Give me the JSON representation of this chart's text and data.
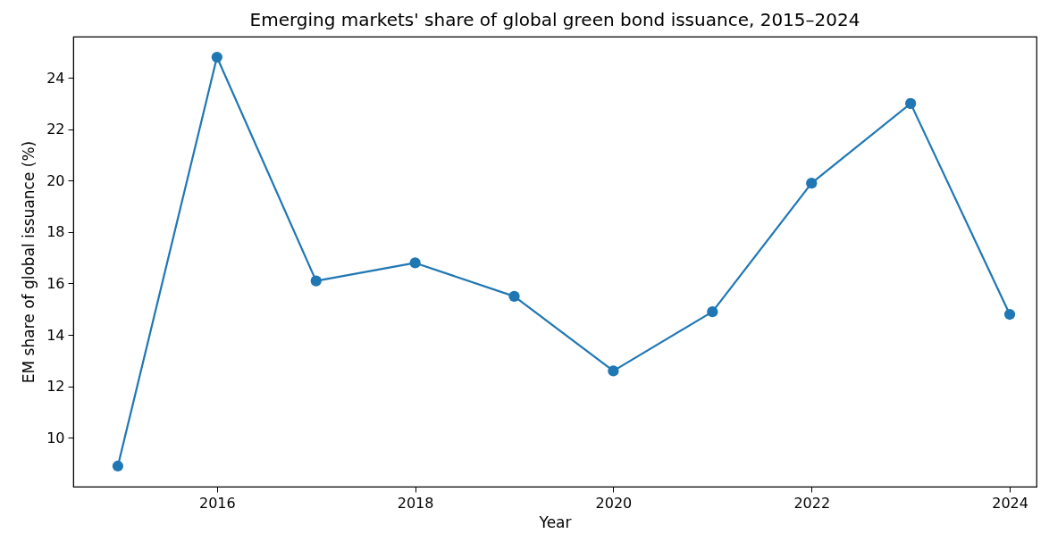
{
  "chart_data": {
    "type": "line",
    "title": "Emerging markets' share of global green bond issuance, 2015–2024",
    "xlabel": "Year",
    "ylabel": "EM share of global issuance (%)",
    "x": [
      2015,
      2016,
      2017,
      2018,
      2019,
      2020,
      2021,
      2022,
      2023,
      2024
    ],
    "series": [
      {
        "color": "#1f77b4",
        "values": [
          8.9,
          24.8,
          16.1,
          16.8,
          15.5,
          12.6,
          14.9,
          19.9,
          23.0,
          14.8
        ]
      }
    ],
    "xlim": [
      2014.55,
      2024.27
    ],
    "xticks": [
      2016,
      2018,
      2020,
      2022,
      2024
    ],
    "ylim": [
      8.1,
      25.6
    ],
    "yticks": [
      10,
      12,
      14,
      16,
      18,
      20,
      22,
      24
    ],
    "grid": false,
    "legend": false,
    "marker": "circle",
    "line_style": "solid"
  }
}
